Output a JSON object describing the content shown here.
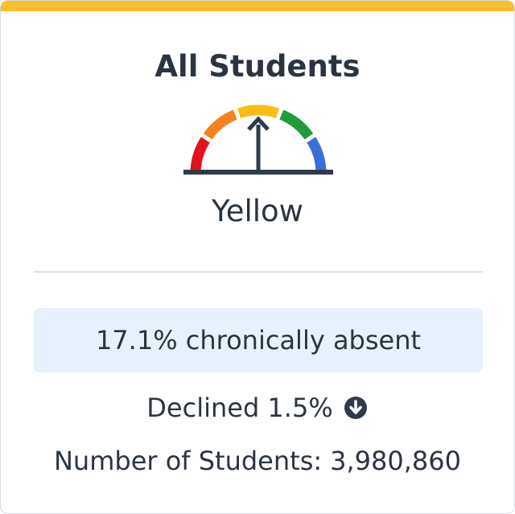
{
  "colors": {
    "accent_bar": "#fbbc2e",
    "gauge_red": "#e0131f",
    "gauge_orange": "#f5821f",
    "gauge_yellow": "#fbbd14",
    "gauge_green": "#1e9b3b",
    "gauge_blue": "#3b6fd8",
    "needle": "#2f3a4b",
    "metric_box_bg": "#e6f1fd"
  },
  "card": {
    "title": "All Students",
    "status": "Yellow",
    "gauge_level": "yellow",
    "gauge_icon": "performance-gauge-icon",
    "metric_text": "17.1% chronically absent",
    "change_text": "Declined 1.5%",
    "change_icon": "arrow-circle-down-icon",
    "count_label": "Number of Students:",
    "count_value": "3,980,860"
  }
}
